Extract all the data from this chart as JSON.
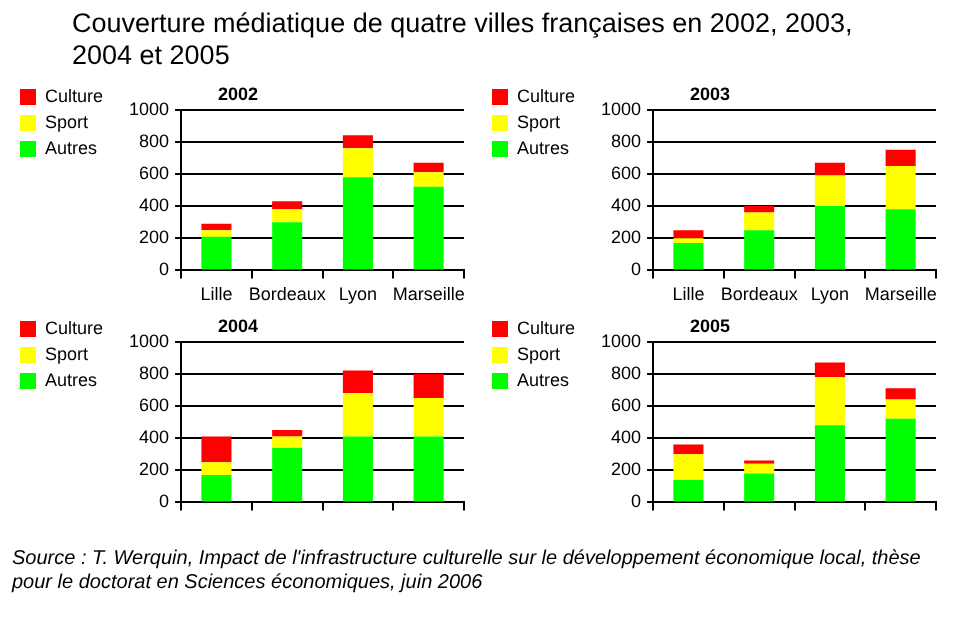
{
  "chart_data": [
    {
      "type": "other",
      "title": "Couverture médiatique de quatre villes françaises en 2002, 2003, 2004 et 2005",
      "annotations": [
        "Source : T. Werquin, Impact de l'infrastructure culturelle sur le développement économique local, thèse pour le doctorat en Sciences économiques, juin 2006"
      ]
    },
    {
      "type": "bar",
      "title": "2002",
      "stacked": true,
      "categories": [
        "Lille",
        "Bordeaux",
        "Lyon",
        "Marseille"
      ],
      "series": [
        {
          "name": "Autres",
          "color": "#00ff00",
          "values": [
            210,
            300,
            580,
            520
          ]
        },
        {
          "name": "Sport",
          "color": "#ffff00",
          "values": [
            40,
            80,
            180,
            90
          ]
        },
        {
          "name": "Culture",
          "color": "#ff0000",
          "values": [
            40,
            50,
            80,
            60
          ]
        }
      ],
      "ylim": [
        0,
        1000
      ],
      "yticks": [
        0,
        200,
        400,
        600,
        800,
        1000
      ],
      "grid": "y",
      "legend": "top left"
    },
    {
      "type": "bar",
      "title": "2003",
      "stacked": true,
      "categories": [
        "Lille",
        "Bordeaux",
        "Lyon",
        "Marseille"
      ],
      "series": [
        {
          "name": "Autres",
          "color": "#00ff00",
          "values": [
            170,
            250,
            400,
            380
          ]
        },
        {
          "name": "Sport",
          "color": "#ffff00",
          "values": [
            30,
            110,
            190,
            270
          ]
        },
        {
          "name": "Culture",
          "color": "#ff0000",
          "values": [
            50,
            40,
            80,
            100
          ]
        }
      ],
      "ylim": [
        0,
        1000
      ],
      "yticks": [
        0,
        200,
        400,
        600,
        800,
        1000
      ],
      "grid": "y",
      "legend": "top left"
    },
    {
      "type": "bar",
      "title": "2004",
      "stacked": true,
      "categories": [
        null,
        null,
        null,
        null
      ],
      "series": [
        {
          "name": "Autres",
          "color": "#00ff00",
          "values": [
            170,
            340,
            410,
            410
          ]
        },
        {
          "name": "Sport",
          "color": "#ffff00",
          "values": [
            80,
            70,
            270,
            240
          ]
        },
        {
          "name": "Culture",
          "color": "#ff0000",
          "values": [
            160,
            40,
            140,
            150
          ]
        }
      ],
      "ylim": [
        0,
        1000
      ],
      "yticks": [
        0,
        200,
        400,
        600,
        800,
        1000
      ],
      "grid": "y",
      "legend": "top left"
    },
    {
      "type": "bar",
      "title": "2005",
      "stacked": true,
      "categories": [
        null,
        null,
        null,
        null
      ],
      "series": [
        {
          "name": "Autres",
          "color": "#00ff00",
          "values": [
            140,
            180,
            480,
            520
          ]
        },
        {
          "name": "Sport",
          "color": "#ffff00",
          "values": [
            160,
            60,
            300,
            120
          ]
        },
        {
          "name": "Culture",
          "color": "#ff0000",
          "values": [
            60,
            20,
            90,
            70
          ]
        }
      ],
      "ylim": [
        0,
        1000
      ],
      "yticks": [
        0,
        200,
        400,
        600,
        800,
        1000
      ],
      "grid": "y",
      "legend": "top left"
    }
  ]
}
